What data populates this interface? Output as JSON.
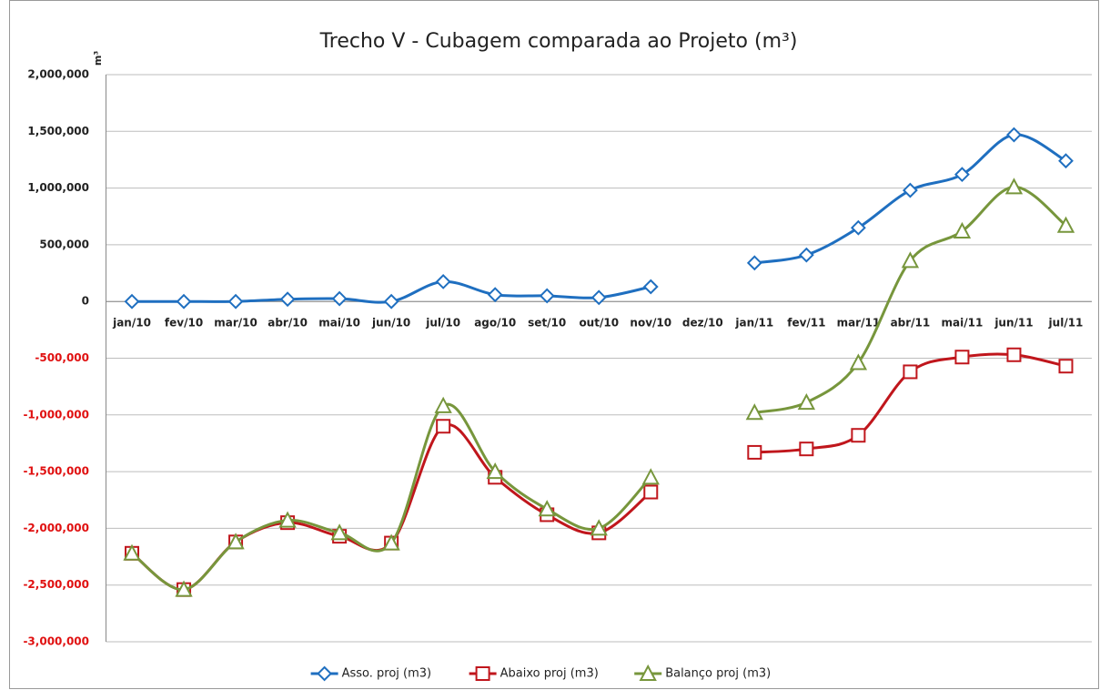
{
  "chart_data": {
    "type": "line",
    "title": "Trecho V - Cubagem comparada ao Projeto (m³)",
    "y_label": "m³",
    "categories": [
      "jan/10",
      "fev/10",
      "mar/10",
      "abr/10",
      "mai/10",
      "jun/10",
      "jul/10",
      "ago/10",
      "set/10",
      "out/10",
      "nov/10",
      "dez/10",
      "jan/11",
      "fev/11",
      "mar/11",
      "abr/11",
      "mai/11",
      "jun/11",
      "jul/11"
    ],
    "series": [
      {
        "name": "Asso. proj (m3)",
        "color": "#1f6fc0",
        "marker": "diamond",
        "values": [
          0,
          0,
          0,
          20000,
          25000,
          0,
          175000,
          60000,
          50000,
          35000,
          130000,
          null,
          340000,
          410000,
          650000,
          980000,
          1120000,
          1470000,
          1240000
        ]
      },
      {
        "name": "Abaixo proj (m3)",
        "color": "#c0161c",
        "marker": "square",
        "values": [
          -2220000,
          -2540000,
          -2120000,
          -1950000,
          -2070000,
          -2130000,
          -1100000,
          -1550000,
          -1880000,
          -2040000,
          -1680000,
          null,
          -1330000,
          -1300000,
          -1180000,
          -620000,
          -490000,
          -470000,
          -570000
        ]
      },
      {
        "name": "Balanço proj (m3)",
        "color": "#77963c",
        "marker": "triangle",
        "values": [
          -2220000,
          -2540000,
          -2120000,
          -1930000,
          -2040000,
          -2130000,
          -920000,
          -1500000,
          -1830000,
          -2000000,
          -1550000,
          null,
          -980000,
          -890000,
          -540000,
          360000,
          620000,
          1010000,
          670000
        ]
      }
    ],
    "ylim": [
      -3000000,
      2000000
    ],
    "yticks": [
      {
        "value": -3000000,
        "label": "-3,000,000"
      },
      {
        "value": -2500000,
        "label": "-2,500,000"
      },
      {
        "value": -2000000,
        "label": "-2,000,000"
      },
      {
        "value": -1500000,
        "label": "-1,500,000"
      },
      {
        "value": -1000000,
        "label": "-1,000,000"
      },
      {
        "value": -500000,
        "label": "-500,000"
      },
      0,
      {
        "value": 500000,
        "label": "500,000"
      },
      {
        "value": 1000000,
        "label": "1,000,000"
      },
      {
        "value": 1500000,
        "label": "1,500,000"
      },
      {
        "value": 2000000,
        "label": "2,000,000"
      }
    ],
    "grid": true,
    "smooth": true,
    "negative_tick_color": "#e01010",
    "legend": "bottom"
  }
}
